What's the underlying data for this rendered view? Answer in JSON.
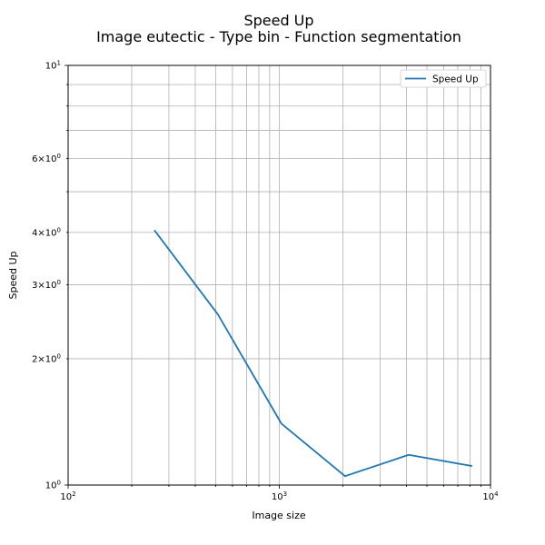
{
  "chart_data": {
    "type": "line",
    "title": "Speed Up",
    "subtitle": "Image eutectic - Type bin - Function segmentation",
    "xlabel": "Image size",
    "ylabel": "Speed Up",
    "xscale": "log",
    "yscale": "log",
    "xlim": [
      100,
      10000
    ],
    "ylim": [
      1,
      10
    ],
    "grid": true,
    "legend": "top-right",
    "series": [
      {
        "name": "Speed Up",
        "color": "#1f77b4",
        "x": [
          256,
          512,
          1024,
          2048,
          4096,
          8192
        ],
        "y": [
          4.05,
          2.55,
          1.4,
          1.05,
          1.18,
          1.11
        ]
      }
    ],
    "x_major_ticks": [
      {
        "value": 100,
        "base": "10",
        "exp": "2"
      },
      {
        "value": 1000,
        "base": "10",
        "exp": "3"
      },
      {
        "value": 10000,
        "base": "10",
        "exp": "4"
      }
    ],
    "y_major_ticks": [
      {
        "value": 1,
        "base": "10",
        "exp": "0"
      },
      {
        "value": 10,
        "base": "10",
        "exp": "1"
      }
    ],
    "y_minor_labeled": [
      {
        "value": 2,
        "mant": "2",
        "base": "10",
        "exp": "0"
      },
      {
        "value": 3,
        "mant": "3",
        "base": "10",
        "exp": "0"
      },
      {
        "value": 4,
        "mant": "4",
        "base": "10",
        "exp": "0"
      },
      {
        "value": 6,
        "mant": "6",
        "base": "10",
        "exp": "0"
      }
    ],
    "times_symbol": "×"
  }
}
